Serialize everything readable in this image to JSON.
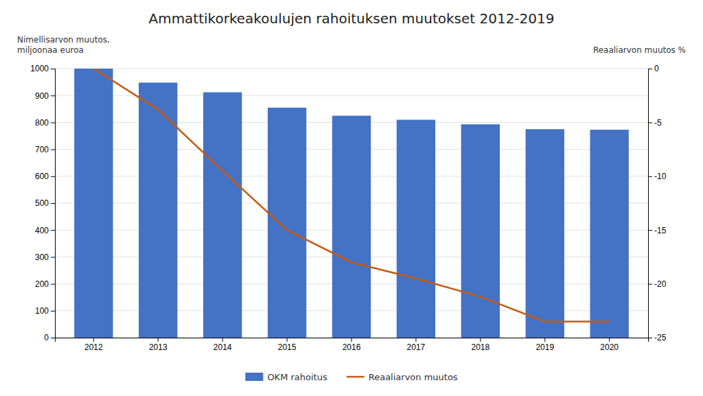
{
  "chart_data": {
    "type": "bar",
    "title": "Ammattikorkeakoulujen rahoituksen muutokset 2012-2019",
    "y_label": "Nimellisarvon muutos,\nmiljoonaa euroa",
    "y2_label": "Reaaliarvon muutos %",
    "categories": [
      "2012",
      "2013",
      "2014",
      "2015",
      "2016",
      "2017",
      "2018",
      "2019",
      "2020"
    ],
    "series": [
      {
        "name": "OKM rahoitus",
        "type": "bar",
        "color": "#4472C4",
        "values": [
          1000,
          948,
          912,
          855,
          825,
          810,
          793,
          775,
          773
        ]
      },
      {
        "name": "Reaaliarvon muutos",
        "type": "line",
        "axis": "y2",
        "color": "#C55A11",
        "values": [
          0,
          -3.8,
          -9.5,
          -15.0,
          -18.0,
          -19.5,
          -21.2,
          -23.5,
          -23.5
        ]
      }
    ],
    "ylim": [
      0,
      1000
    ],
    "yticks": [
      0,
      100,
      200,
      300,
      400,
      500,
      600,
      700,
      800,
      900,
      1000
    ],
    "y2lim": [
      -25,
      0
    ],
    "y2ticks": [
      -25,
      -20,
      -15,
      -10,
      -5,
      0
    ],
    "grid": true,
    "legend": "bottom"
  }
}
